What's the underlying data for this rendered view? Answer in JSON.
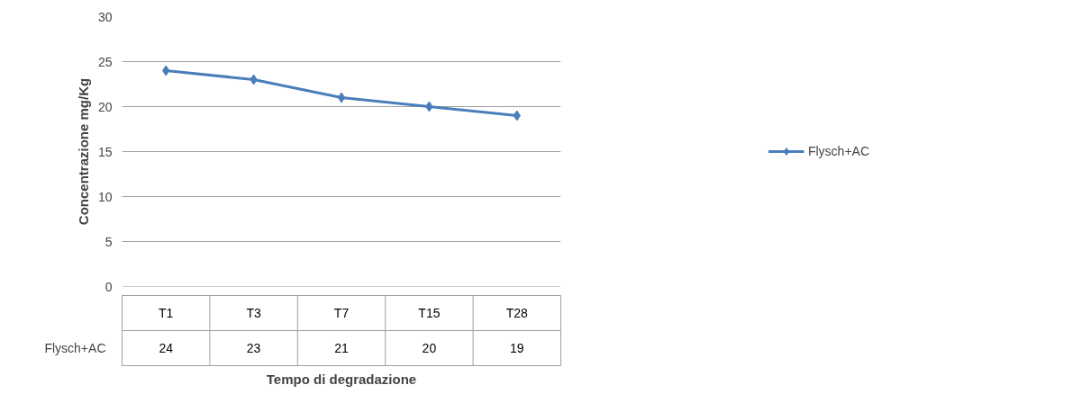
{
  "chart_data": {
    "type": "line",
    "xlabel": "Tempo di degradazione",
    "ylabel": "Concentrazione mg/Kg",
    "categories": [
      "T1",
      "T3",
      "T7",
      "T15",
      "T28"
    ],
    "series": [
      {
        "name": "Flysch+AC",
        "color": "#4a7ebb",
        "values": [
          24,
          23,
          21,
          20,
          19
        ]
      }
    ],
    "ylim": [
      0,
      30
    ],
    "yticks": [
      0,
      5,
      10,
      15,
      20,
      25,
      30
    ],
    "grid": "y",
    "legend": "right",
    "marker": "diamond",
    "data_labels": true
  }
}
